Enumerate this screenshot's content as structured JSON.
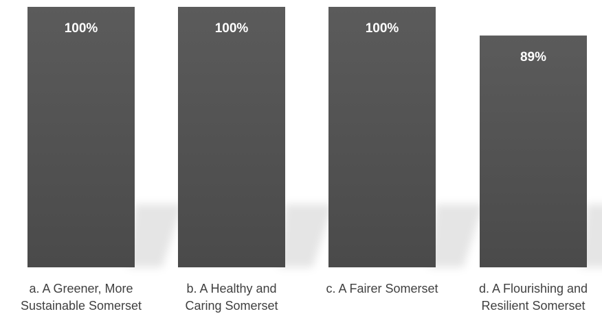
{
  "chart_data": {
    "type": "bar",
    "categories": [
      [
        "a. A Greener, More",
        "Sustainable Somerset"
      ],
      [
        "b. A Healthy and",
        "Caring Somerset"
      ],
      [
        "c. A Fairer Somerset"
      ],
      [
        "d. A Flourishing and",
        "Resilient Somerset"
      ]
    ],
    "values": [
      100,
      100,
      100,
      89
    ],
    "data_labels": [
      "100%",
      "100%",
      "100%",
      "89%"
    ],
    "ylim": [
      0,
      100
    ],
    "grid": false,
    "legend": "none",
    "bar_color": "#595959",
    "label_color": "#ffffff",
    "category_label_color": "#404040"
  }
}
